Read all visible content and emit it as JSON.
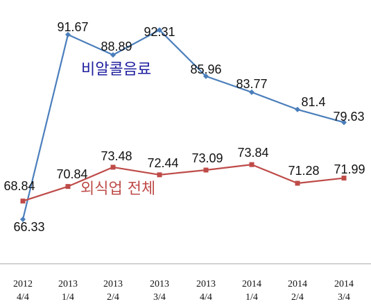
{
  "chart_data": {
    "type": "line",
    "title": "",
    "xlabel": "",
    "ylabel": "",
    "categories": [
      [
        "2012",
        "4/4"
      ],
      [
        "2013",
        "1/4"
      ],
      [
        "2013",
        "2/4"
      ],
      [
        "2013",
        "3/4"
      ],
      [
        "2013",
        "4/4"
      ],
      [
        "2014",
        "1/4"
      ],
      [
        "2014",
        "2/4"
      ],
      [
        "2014",
        "3/4"
      ]
    ],
    "series": [
      {
        "name": "비알콜음료",
        "values": [
          66.33,
          91.67,
          88.89,
          92.31,
          85.96,
          83.77,
          81.4,
          79.63
        ],
        "labels": [
          "66.33",
          "91.67",
          "88.89",
          "92.31",
          "85.96",
          "83.77",
          "81.4",
          "79.63"
        ],
        "color": "#4a7ebb",
        "label_color": "#1f1f9f",
        "marker": "diamond"
      },
      {
        "name": "외식업 전체",
        "values": [
          68.84,
          70.84,
          73.48,
          72.44,
          73.09,
          73.84,
          71.28,
          71.99
        ],
        "labels": [
          "68.84",
          "70.84",
          "73.48",
          "72.44",
          "73.09",
          "73.84",
          "71.28",
          "71.99"
        ],
        "color": "#be4b48",
        "label_color": "#be4b48",
        "marker": "square"
      }
    ],
    "grid": false,
    "legend": "inline labels"
  }
}
